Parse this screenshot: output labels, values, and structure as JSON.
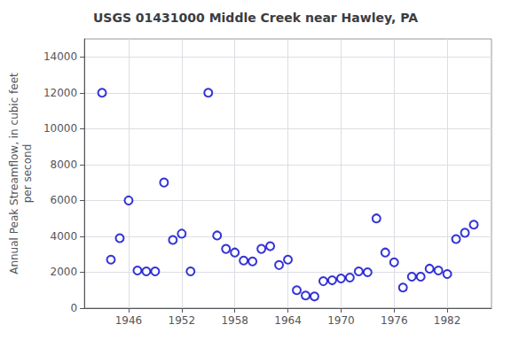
{
  "chart_data": {
    "type": "scatter",
    "title": "USGS 01431000 Middle Creek near Hawley, PA",
    "ylabel": "Annual Peak Streamflow, in cubic feet\nper second",
    "x": [
      1943,
      1944,
      1945,
      1946,
      1947,
      1948,
      1949,
      1950,
      1951,
      1952,
      1953,
      1955,
      1956,
      1957,
      1958,
      1959,
      1960,
      1961,
      1962,
      1963,
      1964,
      1965,
      1966,
      1967,
      1968,
      1969,
      1970,
      1971,
      1972,
      1973,
      1974,
      1975,
      1976,
      1977,
      1978,
      1979,
      1980,
      1981,
      1982,
      1983,
      1984,
      1985
    ],
    "values": [
      12000,
      2700,
      3900,
      6000,
      2100,
      2050,
      2050,
      7000,
      3800,
      4150,
      2050,
      12000,
      4050,
      3300,
      3100,
      2650,
      2600,
      3300,
      3450,
      2400,
      2700,
      1000,
      700,
      650,
      1500,
      1550,
      1650,
      1700,
      2050,
      2000,
      5000,
      3100,
      2550,
      1150,
      1750,
      1750,
      2200,
      2100,
      1900,
      3850,
      4200,
      4650
    ],
    "color": "#0000CC",
    "marker": "circle",
    "xlim": [
      1941,
      1987
    ],
    "xticks": [
      1946,
      1952,
      1958,
      1964,
      1970,
      1976,
      1982
    ],
    "ylim": [
      0,
      15000
    ],
    "yticks": [
      0,
      2000,
      4000,
      6000,
      8000,
      10000,
      12000,
      14000
    ],
    "grid": true
  }
}
